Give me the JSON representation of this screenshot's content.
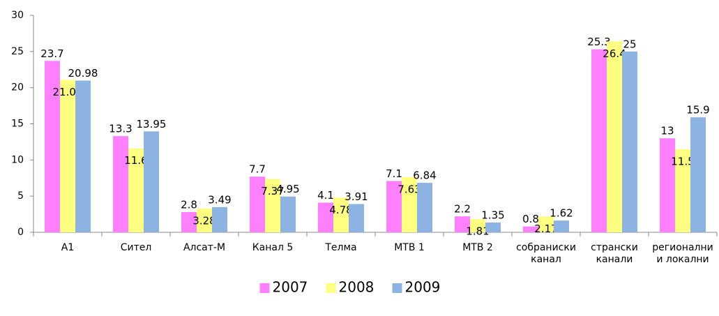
{
  "chart_data": {
    "type": "bar",
    "categories": [
      "A1",
      "Сител",
      "Алсат-М",
      "Канал 5",
      "Телма",
      "МТВ 1",
      "МТВ 2",
      [
        "собраниски",
        "канал"
      ],
      [
        "странски",
        "канали"
      ],
      [
        "регионални",
        "и локални"
      ]
    ],
    "series": [
      {
        "name": "2007",
        "color": "#ff80ff",
        "values": [
          23.7,
          13.3,
          2.8,
          7.7,
          4.1,
          7.1,
          2.2,
          0.8,
          25.3,
          13
        ]
      },
      {
        "name": "2008",
        "color": "#ffff80",
        "values": [
          21.07,
          11.6,
          3.28,
          7.37,
          4.78,
          7.63,
          1.81,
          2.17,
          26.4,
          11.5
        ]
      },
      {
        "name": "2009",
        "color": "#8db3e2",
        "values": [
          20.98,
          13.95,
          3.49,
          4.95,
          3.91,
          6.84,
          1.35,
          1.62,
          25,
          15.9
        ]
      }
    ],
    "ylim": [
      0,
      30
    ],
    "yticks": [
      0,
      5,
      10,
      15,
      20,
      25,
      30
    ],
    "grid": false,
    "legend": "bottom"
  }
}
